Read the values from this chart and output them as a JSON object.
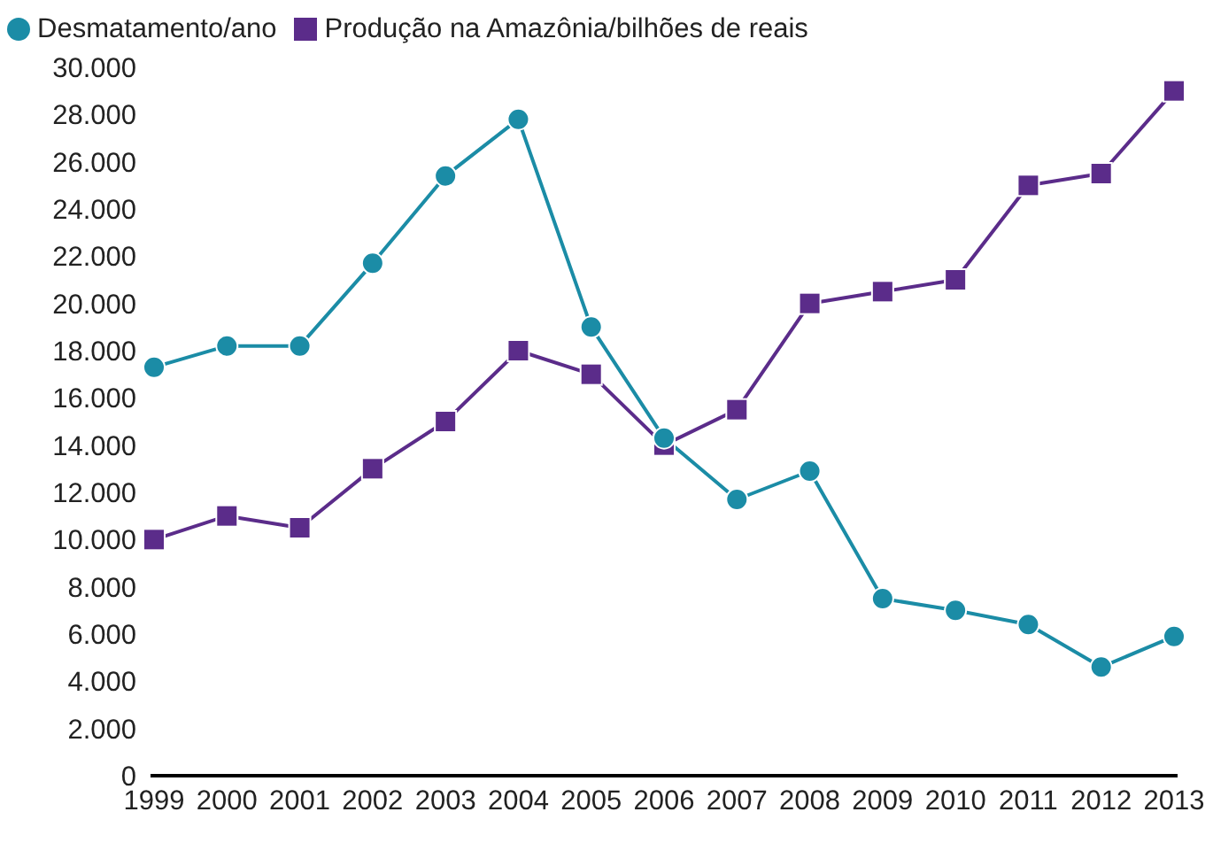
{
  "chart_data": {
    "type": "line",
    "categories": [
      "1999",
      "2000",
      "2001",
      "2002",
      "2003",
      "2004",
      "2005",
      "2006",
      "2007",
      "2008",
      "2009",
      "2010",
      "2011",
      "2012",
      "2013"
    ],
    "series": [
      {
        "name": "Desmatamento/ano",
        "color": "#1b8ca6",
        "marker": "circle",
        "values": [
          17300,
          18200,
          18200,
          21700,
          25400,
          27800,
          19000,
          14300,
          11700,
          12900,
          7500,
          7000,
          6400,
          4600,
          5900
        ]
      },
      {
        "name": "Produção na Amazônia/bilhões de reais",
        "color": "#5b2c8a",
        "marker": "square",
        "values": [
          10000,
          11000,
          10500,
          13000,
          15000,
          18000,
          17000,
          14000,
          15500,
          20000,
          20500,
          21000,
          25000,
          25500,
          29000
        ]
      }
    ],
    "ylim": [
      0,
      30000
    ],
    "yticks": [
      {
        "value": 0,
        "label": "0"
      },
      {
        "value": 2000,
        "label": "2.000"
      },
      {
        "value": 4000,
        "label": "4.000"
      },
      {
        "value": 6000,
        "label": "6.000"
      },
      {
        "value": 8000,
        "label": "8.000"
      },
      {
        "value": 10000,
        "label": "10.000"
      },
      {
        "value": 12000,
        "label": "12.000"
      },
      {
        "value": 14000,
        "label": "14.000"
      },
      {
        "value": 16000,
        "label": "16.000"
      },
      {
        "value": 18000,
        "label": "18.000"
      },
      {
        "value": 20000,
        "label": "20.000"
      },
      {
        "value": 22000,
        "label": "22.000"
      },
      {
        "value": 24000,
        "label": "24.000"
      },
      {
        "value": 26000,
        "label": "26.000"
      },
      {
        "value": 28000,
        "label": "28.000"
      },
      {
        "value": 30000,
        "label": "30.000"
      }
    ],
    "legend": "top left",
    "grid": false
  }
}
